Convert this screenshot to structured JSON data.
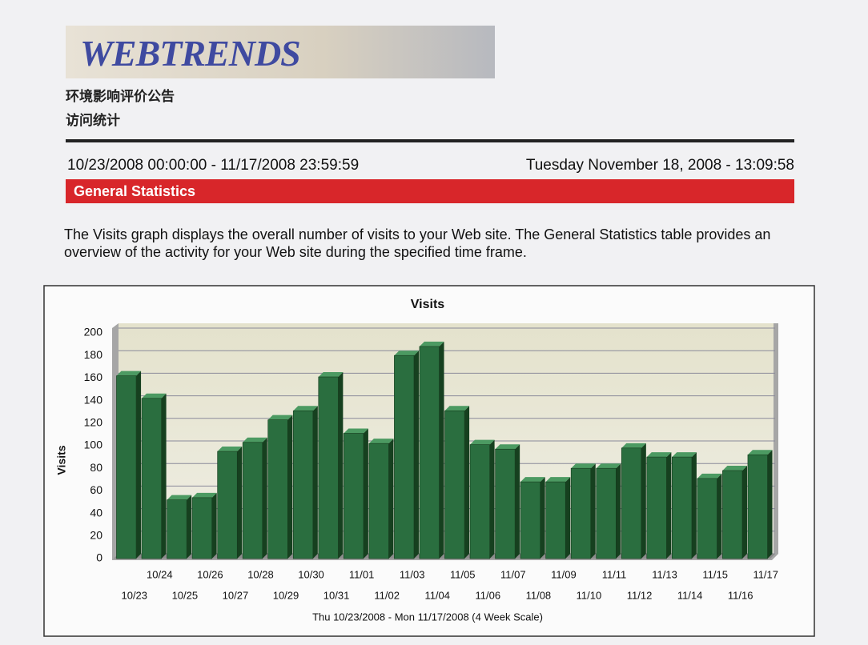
{
  "header": {
    "logo": "WEBTRENDS",
    "site_name": "环境影响评价公告",
    "report_name": "访问统计"
  },
  "date_range": "10/23/2008 00:00:00 - 11/17/2008 23:59:59",
  "generated": "Tuesday November 18, 2008 - 13:09:58",
  "section_title": "General Statistics",
  "description": "The Visits graph displays the overall number of visits to your Web site. The General Statistics table provides an overview of the activity for your Web site during the specified time frame.",
  "chart_data": {
    "type": "bar",
    "title": "Visits",
    "y_label": "Visits",
    "x_label": "Thu 10/23/2008 - Mon 11/17/2008 (4 Week Scale)",
    "categories": [
      "10/23",
      "10/24",
      "10/25",
      "10/26",
      "10/27",
      "10/28",
      "10/29",
      "10/30",
      "10/31",
      "11/01",
      "11/02",
      "11/03",
      "11/04",
      "11/05",
      "11/06",
      "11/07",
      "11/08",
      "11/09",
      "11/10",
      "11/11",
      "11/12",
      "11/13",
      "11/14",
      "11/15",
      "11/16",
      "11/17"
    ],
    "values": [
      162,
      142,
      52,
      54,
      95,
      103,
      123,
      131,
      161,
      111,
      102,
      180,
      188,
      131,
      101,
      97,
      68,
      68,
      80,
      80,
      98,
      90,
      90,
      71,
      78,
      92
    ],
    "color": "#2a6e3f",
    "ylim": [
      0,
      200
    ],
    "yticks": [
      0,
      20,
      40,
      60,
      80,
      100,
      120,
      140,
      160,
      180,
      200
    ],
    "grid": true
  }
}
